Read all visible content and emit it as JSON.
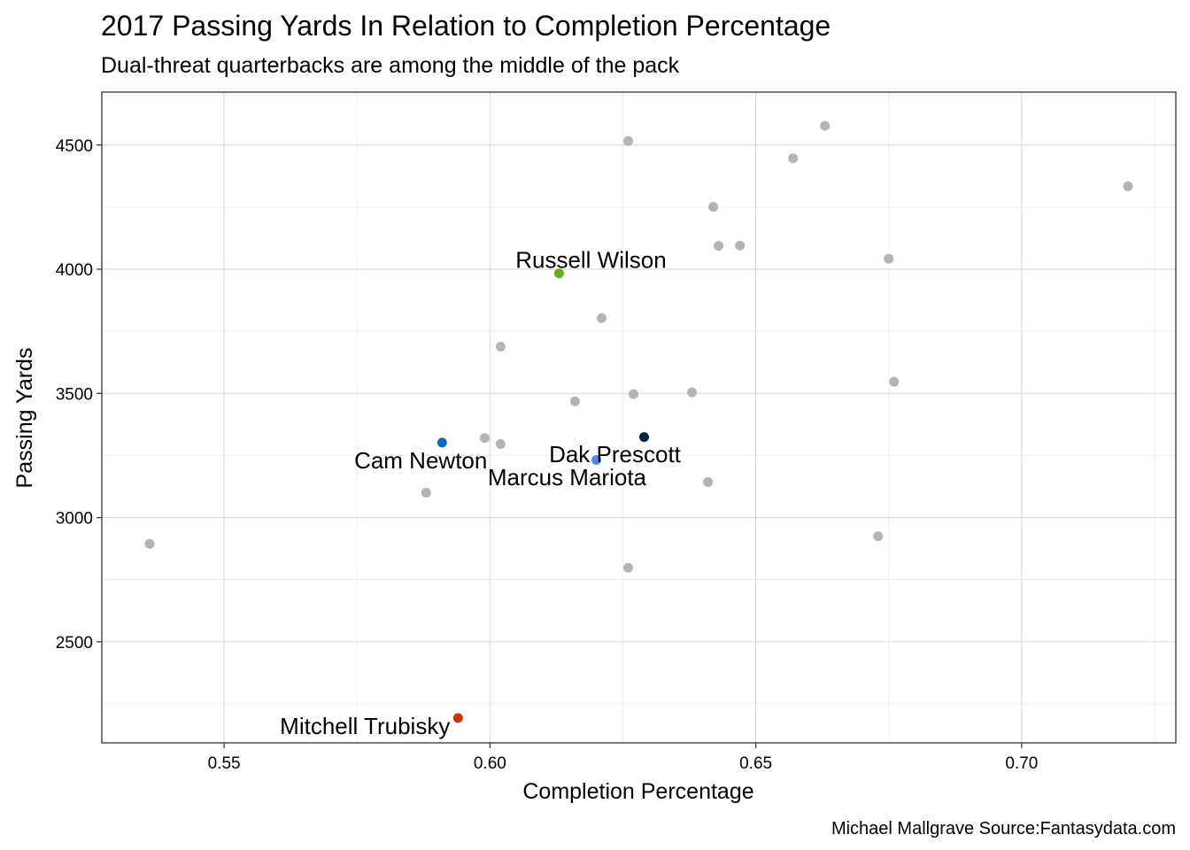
{
  "chart_data": {
    "type": "scatter",
    "title": "2017 Passing Yards In Relation to Completion Percentage",
    "subtitle": "Dual-threat quarterbacks are among the middle of the pack",
    "xlabel": "Completion Percentage",
    "ylabel": "Passing Yards",
    "caption": "Michael Mallgrave Source:Fantasydata.com",
    "xlim": [
      0.527,
      0.729
    ],
    "ylim": [
      2093,
      4713
    ],
    "x_ticks": [
      0.55,
      0.6,
      0.65,
      0.7
    ],
    "x_tick_labels": [
      "0.55",
      "0.60",
      "0.65",
      "0.70"
    ],
    "y_ticks": [
      2500,
      3000,
      3500,
      4000,
      4500
    ],
    "y_tick_labels": [
      "2500",
      "3000",
      "3500",
      "4000",
      "4500"
    ],
    "grid": true,
    "default_color": "#b3b3b3",
    "points": [
      {
        "x": 0.536,
        "y": 2894
      },
      {
        "x": 0.588,
        "y": 3100
      },
      {
        "x": 0.599,
        "y": 3320
      },
      {
        "x": 0.602,
        "y": 3296
      },
      {
        "x": 0.602,
        "y": 3688
      },
      {
        "x": 0.616,
        "y": 3468
      },
      {
        "x": 0.621,
        "y": 3803
      },
      {
        "x": 0.626,
        "y": 4516
      },
      {
        "x": 0.626,
        "y": 2798
      },
      {
        "x": 0.627,
        "y": 3497
      },
      {
        "x": 0.638,
        "y": 3504
      },
      {
        "x": 0.641,
        "y": 3143
      },
      {
        "x": 0.642,
        "y": 4251
      },
      {
        "x": 0.643,
        "y": 4094
      },
      {
        "x": 0.647,
        "y": 4095
      },
      {
        "x": 0.657,
        "y": 4446
      },
      {
        "x": 0.663,
        "y": 4577
      },
      {
        "x": 0.673,
        "y": 2925
      },
      {
        "x": 0.675,
        "y": 4042
      },
      {
        "x": 0.676,
        "y": 3547
      },
      {
        "x": 0.72,
        "y": 4334
      },
      {
        "x": 0.613,
        "y": 3983,
        "name": "Russell Wilson",
        "color": "#5bb31e"
      },
      {
        "x": 0.591,
        "y": 3302,
        "name": "Cam Newton",
        "color": "#0a6cc0"
      },
      {
        "x": 0.629,
        "y": 3324,
        "name": "Dak Prescott",
        "color": "#0c2340"
      },
      {
        "x": 0.62,
        "y": 3232,
        "name": "Marcus Mariota",
        "color": "#4b92db"
      },
      {
        "x": 0.594,
        "y": 2193,
        "name": "Mitchell Trubisky",
        "color": "#c83803"
      }
    ],
    "labels": [
      {
        "text": "Russell Wilson",
        "x": 0.619,
        "y": 4006,
        "anchor": "middle"
      },
      {
        "text": "Cam Newton",
        "x": 0.5995,
        "y": 3198,
        "anchor": "end"
      },
      {
        "text": "Dak Prescott",
        "x": 0.6235,
        "y": 3223,
        "anchor": "middle"
      },
      {
        "text": "Marcus Mariota",
        "x": 0.6145,
        "y": 3130,
        "anchor": "middle"
      },
      {
        "text": "Mitchell Trubisky",
        "x": 0.5925,
        "y": 2128,
        "anchor": "end"
      }
    ]
  }
}
